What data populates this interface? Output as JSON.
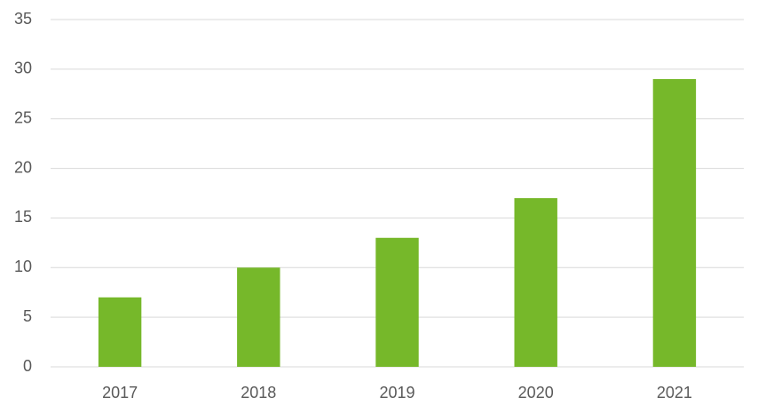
{
  "chart_data": {
    "type": "bar",
    "categories": [
      "2017",
      "2018",
      "2019",
      "2020",
      "2021"
    ],
    "values": [
      7,
      10,
      13,
      17,
      29
    ],
    "color": "#76b82a",
    "ylim": [
      0,
      35
    ],
    "yticks": [
      0,
      5,
      10,
      15,
      20,
      25,
      30,
      35
    ],
    "grid": true
  }
}
